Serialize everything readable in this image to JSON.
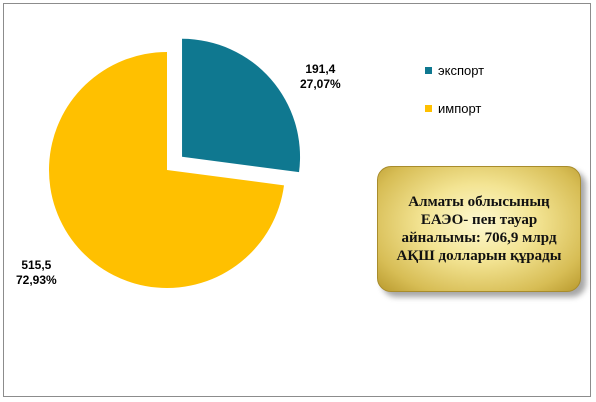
{
  "chart_data": {
    "type": "pie",
    "title": "",
    "slices": [
      {
        "name": "экспорт",
        "value": 191.4,
        "value_label": "191,4",
        "percent_label": "27,07%",
        "color": "#0f7890",
        "exploded": true
      },
      {
        "name": "импорт",
        "value": 515.5,
        "value_label": "515,5",
        "percent_label": "72,93%",
        "color": "#ffc000",
        "exploded": false
      }
    ],
    "legend_position": "right"
  },
  "annotation": {
    "text": "Алматы облысының ЕАЭО- пен тауар айналымы: 706,9 млрд АҚШ долларын құрады"
  }
}
